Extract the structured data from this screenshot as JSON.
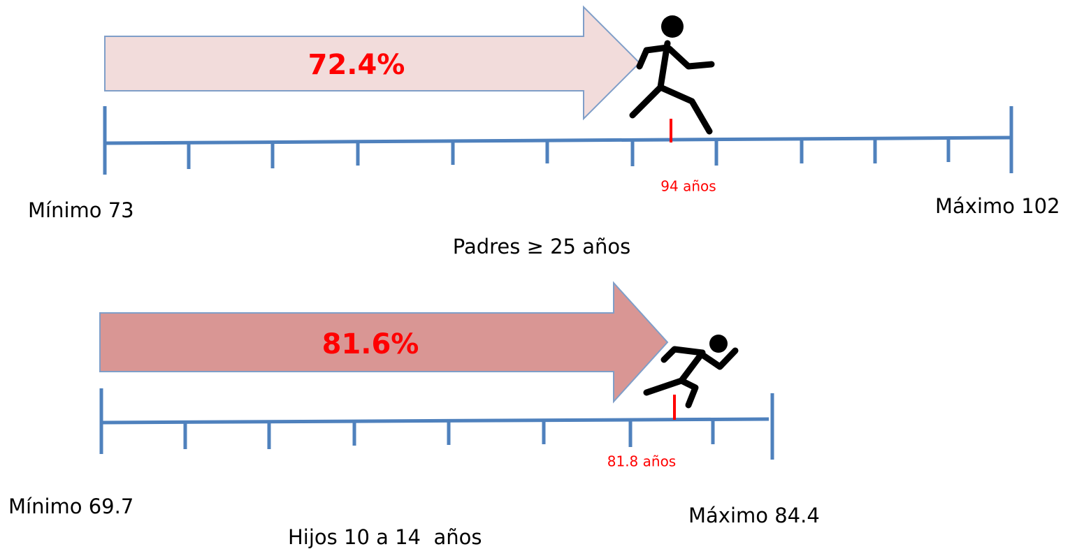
{
  "panels": [
    {
      "percent": "72.4%",
      "marker_label": "94 años",
      "min_label": "Mínimo 73",
      "max_label": "Máximo 102",
      "caption": "Padres ≥ 25 años"
    },
    {
      "percent": "81.6%",
      "marker_label": "81.8 años",
      "min_label": "Mínimo 69.7",
      "max_label": "Máximo 84.4",
      "caption": "Hijos 10 a 14  años"
    }
  ]
}
